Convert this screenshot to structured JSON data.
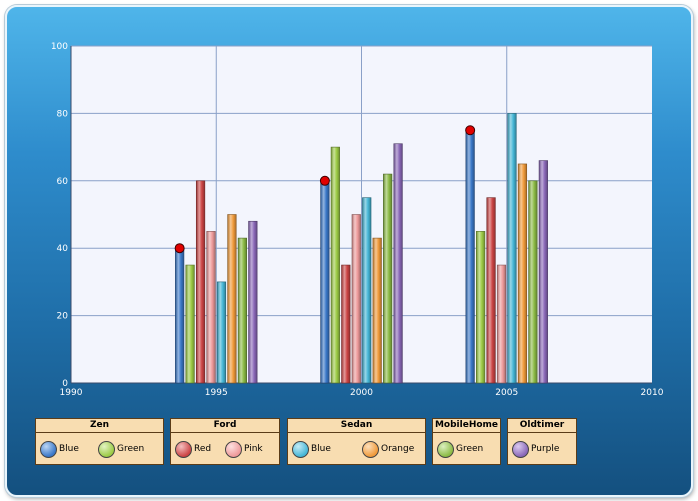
{
  "chart_data": {
    "type": "bar",
    "title": "",
    "xlabel": "",
    "ylabel": "",
    "x_ticks": [
      "1990",
      "1995",
      "2000",
      "2005",
      "2010"
    ],
    "xlim": [
      1990,
      2010
    ],
    "y_ticks": [
      "0",
      "20",
      "40",
      "60",
      "80",
      "100"
    ],
    "ylim": [
      0,
      100
    ],
    "grid": true,
    "categories": [
      "1995",
      "2000",
      "2005"
    ],
    "series": [
      {
        "group": "Zen",
        "name": "Blue",
        "color": "#3a78c8",
        "values": [
          40,
          60,
          75
        ]
      },
      {
        "group": "Zen",
        "name": "Green",
        "color": "#9ccb45",
        "values": [
          35,
          70,
          45
        ]
      },
      {
        "group": "Ford",
        "name": "Red",
        "color": "#cc4545",
        "values": [
          60,
          35,
          55
        ]
      },
      {
        "group": "Ford",
        "name": "Pink",
        "color": "#ee9a9a",
        "values": [
          45,
          50,
          35
        ]
      },
      {
        "group": "Sedan",
        "name": "Blue",
        "color": "#45b6d6",
        "values": [
          30,
          55,
          80
        ]
      },
      {
        "group": "Sedan",
        "name": "Orange",
        "color": "#f09a3a",
        "values": [
          50,
          43,
          65
        ]
      },
      {
        "group": "MobileHome",
        "name": "Green",
        "color": "#8cbb45",
        "values": [
          43,
          62,
          60
        ]
      },
      {
        "group": "Oldtimer",
        "name": "Purple",
        "color": "#8a68b8",
        "values": [
          48,
          71,
          66
        ]
      }
    ],
    "markers": {
      "series_index": 0,
      "color": "#e00000"
    }
  },
  "legends": [
    {
      "title": "Zen",
      "items": [
        {
          "label": "Blue",
          "color": "#3a78c8"
        },
        {
          "label": "Green",
          "color": "#9ccb45"
        }
      ]
    },
    {
      "title": "Ford",
      "items": [
        {
          "label": "Red",
          "color": "#cc4545"
        },
        {
          "label": "Pink",
          "color": "#ee9a9a"
        }
      ]
    },
    {
      "title": "Sedan",
      "items": [
        {
          "label": "Blue",
          "color": "#45b6d6"
        },
        {
          "label": "Orange",
          "color": "#f09a3a"
        }
      ]
    },
    {
      "title": "MobileHome",
      "items": [
        {
          "label": "Green",
          "color": "#8cbb45"
        }
      ]
    },
    {
      "title": "Oldtimer",
      "items": [
        {
          "label": "Purple",
          "color": "#8a68b8"
        }
      ]
    }
  ]
}
